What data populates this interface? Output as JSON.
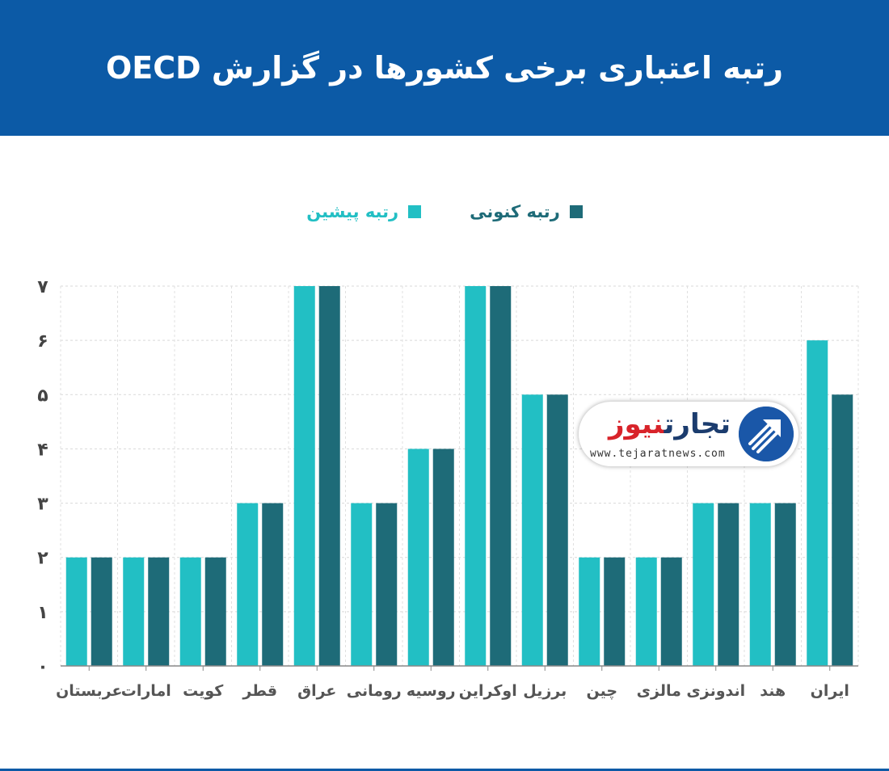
{
  "header": {
    "title": "رتبه اعتباری برخی کشورها در گزارش OECD"
  },
  "colors": {
    "header_bg": "#0c5aa6",
    "previous": "#22bfc4",
    "current": "#1e6b78"
  },
  "watermark": {
    "brand_dark": "تجارت",
    "brand_red": "نیوز",
    "url": "www.tejaratnews.com"
  },
  "chart_data": {
    "type": "bar",
    "orientation": "vertical",
    "direction": "rtl",
    "categories": [
      "ایران",
      "هند",
      "اندونزی",
      "مالزی",
      "چین",
      "برزیل",
      "اوکراین",
      "روسیه",
      "رومانی",
      "عراق",
      "قطر",
      "کویت",
      "امارات",
      "عربستان"
    ],
    "series": [
      {
        "name": "رتبه پیشین",
        "color": "#22bfc4",
        "values": [
          6,
          3,
          3,
          2,
          2,
          5,
          7,
          4,
          3,
          7,
          3,
          2,
          2,
          2
        ]
      },
      {
        "name": "رتبه کنونی",
        "color": "#1e6b78",
        "values": [
          5,
          3,
          3,
          2,
          2,
          5,
          7,
          4,
          3,
          7,
          3,
          2,
          2,
          2
        ]
      }
    ],
    "ylim": [
      0,
      7
    ],
    "yticks": [
      "۰",
      "۱",
      "۲",
      "۳",
      "۴",
      "۵",
      "۶",
      "۷"
    ],
    "grid": true,
    "legend_position": "top-center"
  }
}
